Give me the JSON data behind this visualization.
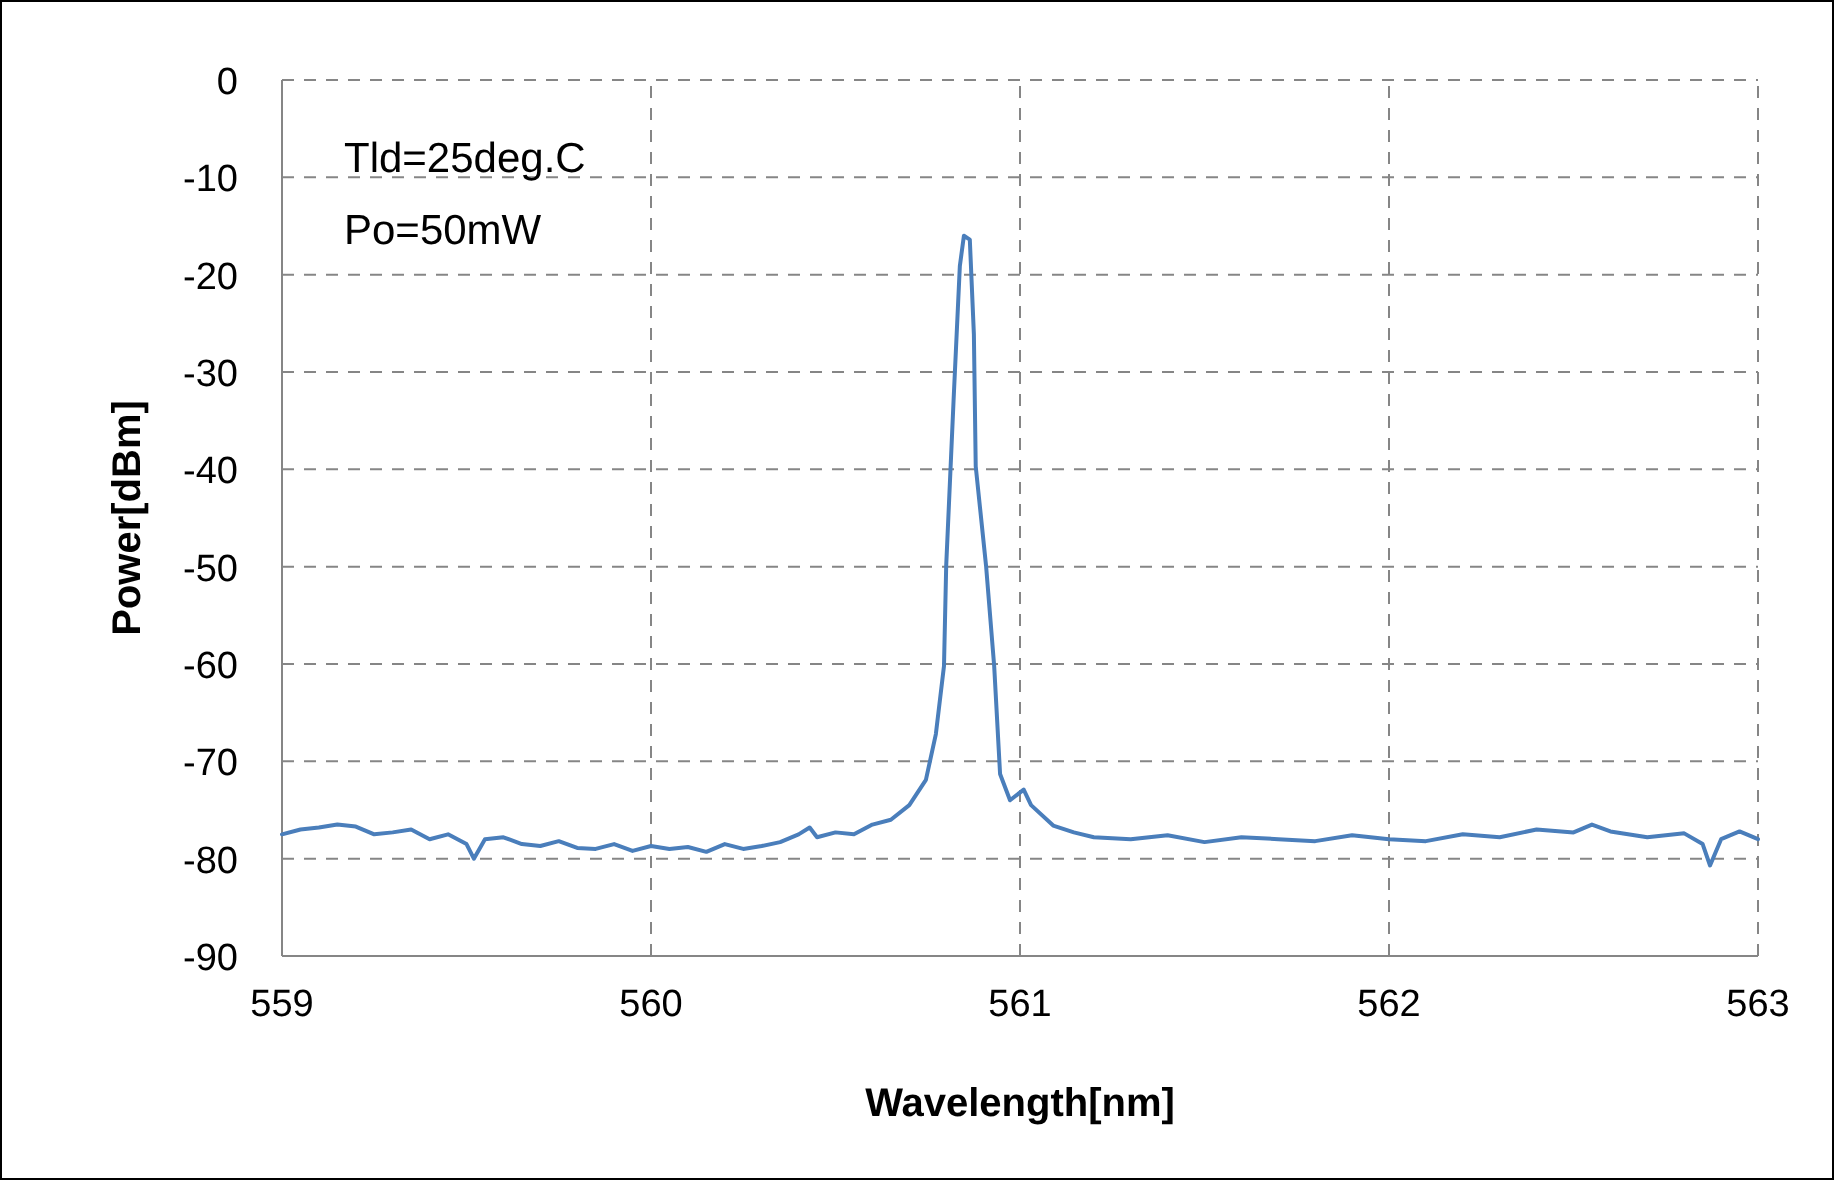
{
  "chart_data": {
    "type": "line",
    "xlabel": "Wavelength[nm]",
    "ylabel": "Power[dBm]",
    "annotations": [
      "Tld=25deg.C",
      "Po=50mW"
    ],
    "xlim": [
      559,
      563
    ],
    "xticks": [
      559,
      560,
      561,
      562,
      563
    ],
    "ylim": [
      -90,
      0
    ],
    "yticks": [
      -90,
      -80,
      -70,
      -60,
      -50,
      -40,
      -30,
      -20,
      -10,
      0
    ],
    "grid": true,
    "line_style": "solid",
    "marker": "none",
    "series": [
      {
        "color": "#4a7ebb",
        "x": [
          559,
          559.05,
          559.1,
          559.15,
          559.2,
          559.25,
          559.3,
          559.35,
          559.4,
          559.45,
          559.5,
          559.52,
          559.55,
          559.6,
          559.65,
          559.7,
          559.75,
          559.8,
          559.85,
          559.9,
          559.95,
          560,
          560.05,
          560.1,
          560.15,
          560.2,
          560.25,
          560.3,
          560.35,
          560.4,
          560.43,
          560.45,
          560.5,
          560.55,
          560.6,
          560.65,
          560.7,
          560.745,
          560.772,
          560.794,
          560.8,
          560.82,
          560.837,
          560.848,
          560.864,
          560.875,
          560.88,
          560.908,
          560.93,
          560.946,
          560.973,
          561.01,
          561.03,
          561.09,
          561.146,
          561.2,
          561.3,
          561.4,
          561.5,
          561.6,
          561.7,
          561.8,
          561.9,
          562,
          562.1,
          562.2,
          562.3,
          562.4,
          562.5,
          562.55,
          562.6,
          562.7,
          562.8,
          562.85,
          562.87,
          562.9,
          562.95,
          563
        ],
        "values": [
          -77.5,
          -77,
          -76.8,
          -76.5,
          -76.7,
          -77.5,
          -77.3,
          -77,
          -78,
          -77.5,
          -78.5,
          -80,
          -78,
          -77.8,
          -78.5,
          -78.7,
          -78.2,
          -78.9,
          -79,
          -78.5,
          -79.2,
          -78.7,
          -79,
          -78.8,
          -79.3,
          -78.5,
          -79,
          -78.7,
          -78.3,
          -77.5,
          -76.8,
          -77.8,
          -77.3,
          -77.5,
          -76.5,
          -76,
          -74.5,
          -71.9,
          -67.2,
          -60.2,
          -49.9,
          -32.9,
          -19.1,
          -16,
          -16.4,
          -26.1,
          -39.7,
          -49.9,
          -60.2,
          -71.3,
          -74,
          -72.9,
          -74.5,
          -76.6,
          -77.3,
          -77.8,
          -78,
          -77.6,
          -78.3,
          -77.8,
          -78,
          -78.2,
          -77.6,
          -78,
          -78.2,
          -77.5,
          -77.8,
          -77,
          -77.3,
          -76.5,
          -77.2,
          -77.8,
          -77.4,
          -78.5,
          -80.7,
          -78,
          -77.2,
          -78
        ]
      }
    ]
  }
}
